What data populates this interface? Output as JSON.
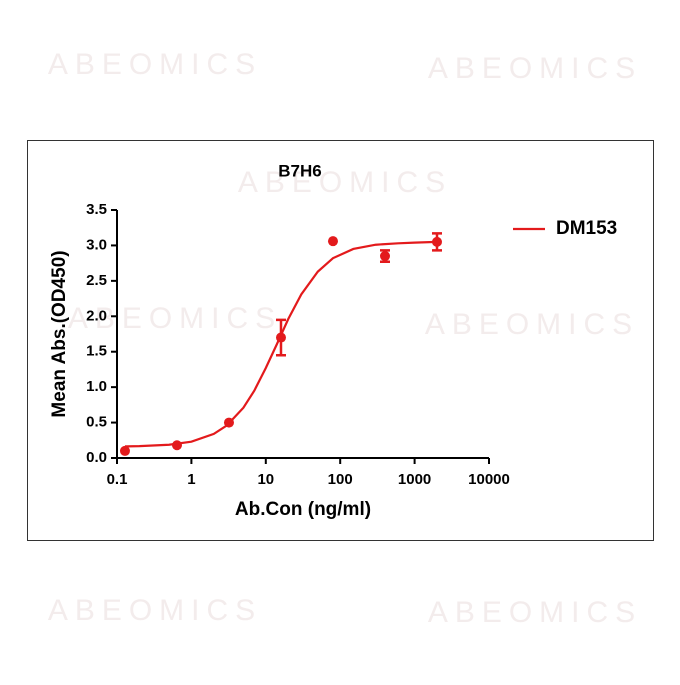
{
  "chart_data": {
    "type": "scatter",
    "title": "B7H6",
    "x_label": "Ab.Con (ng/ml)",
    "y_label": "Mean Abs.(OD450)",
    "watermark": "ABEOMICS",
    "xscale": "log",
    "xlim": [
      0.1,
      10000
    ],
    "xticks": [
      0.1,
      1,
      10,
      100,
      1000,
      10000
    ],
    "ylim": [
      0,
      3.5
    ],
    "yticks": [
      {
        "value": 0,
        "label": "0.0"
      },
      0.5,
      {
        "value": 1,
        "label": "1.0"
      },
      1.5,
      {
        "value": 2,
        "label": "2.0"
      },
      2.5,
      {
        "value": 3,
        "label": "3.0"
      },
      3.5
    ],
    "legend": "right",
    "series": [
      {
        "name": "DM153",
        "color": "#e31a1c",
        "x": [
          0.128,
          0.64,
          3.2,
          16,
          80,
          400,
          2000
        ],
        "values": [
          0.1,
          0.18,
          0.5,
          1.7,
          3.06,
          2.85,
          3.05
        ],
        "errors": [
          null,
          null,
          null,
          0.25,
          null,
          0.08,
          0.12
        ],
        "fit_x": [
          0.128,
          0.2,
          0.5,
          1,
          2,
          3,
          5,
          7,
          10,
          14,
          20,
          30,
          50,
          80,
          150,
          300,
          600,
          1000,
          2000
        ],
        "fit_values": [
          0.164,
          0.168,
          0.187,
          0.23,
          0.34,
          0.46,
          0.71,
          0.95,
          1.27,
          1.6,
          1.96,
          2.31,
          2.63,
          2.82,
          2.95,
          3.01,
          3.03,
          3.04,
          3.05
        ]
      }
    ]
  }
}
